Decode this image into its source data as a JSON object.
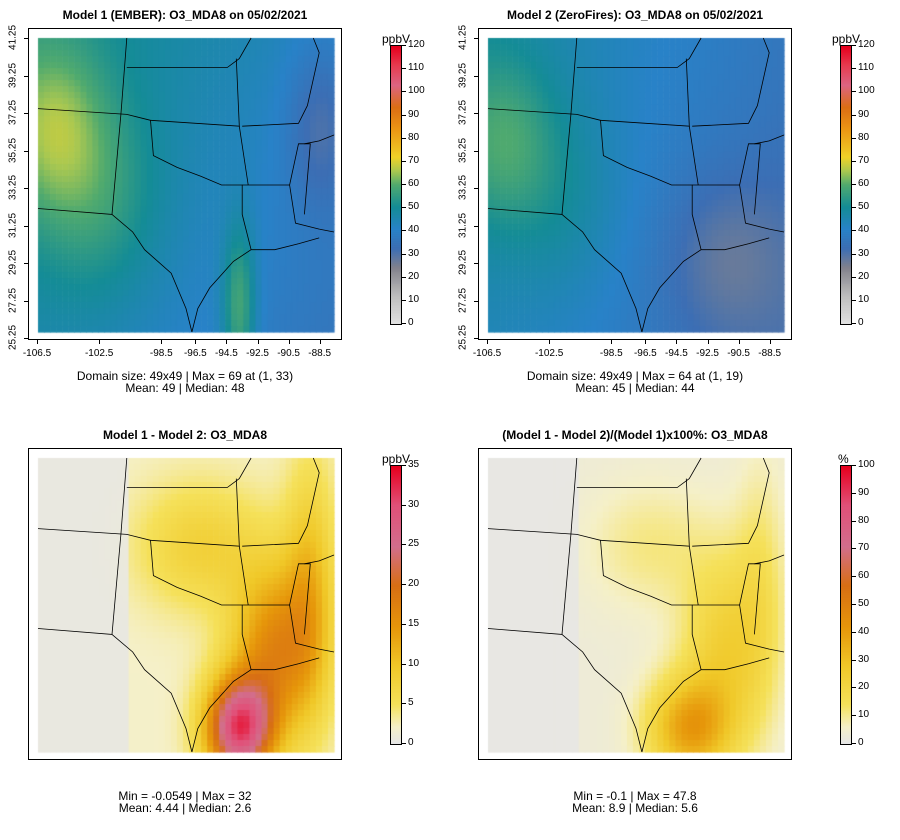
{
  "panels": [
    {
      "title": "Model 1 (EMBER): O3_MDA8 on 05/02/2021",
      "unit": "ppbV",
      "ticks": [
        "0",
        "10",
        "20",
        "30",
        "40",
        "50",
        "60",
        "70",
        "80",
        "90",
        "100",
        "110",
        "120"
      ],
      "scale": "conc",
      "range": [
        0,
        120
      ],
      "show_axes": true,
      "stats_line1": "Domain size: 49x49 | Max = 69 at (1, 33)",
      "stats_line2": "Mean: 49 |  Median: 48"
    },
    {
      "title": "Model 2 (ZeroFires): O3_MDA8 on 05/02/2021",
      "unit": "ppbV",
      "ticks": [
        "0",
        "10",
        "20",
        "30",
        "40",
        "50",
        "60",
        "70",
        "80",
        "90",
        "100",
        "110",
        "120"
      ],
      "scale": "conc",
      "range": [
        0,
        120
      ],
      "show_axes": true,
      "stats_line1": "Domain size: 49x49 | Max = 64 at (1, 19)",
      "stats_line2": "Mean: 45 |  Median: 44"
    },
    {
      "title": "Model 1 - Model 2: O3_MDA8",
      "unit": "ppbV",
      "ticks": [
        "0",
        "5",
        "10",
        "15",
        "20",
        "25",
        "30",
        "35"
      ],
      "scale": "diff",
      "range": [
        0,
        35
      ],
      "show_axes": false,
      "stats_line1": "Min = -0.0549 | Max = 32",
      "stats_line2": "Mean: 4.44 |  Median: 2.6"
    },
    {
      "title": "(Model 1 - Model 2)/(Model 1)x100%: O3_MDA8",
      "unit": "%",
      "ticks": [
        "0",
        "10",
        "20",
        "30",
        "40",
        "50",
        "60",
        "70",
        "80",
        "90",
        "100"
      ],
      "scale": "diff",
      "range": [
        0,
        100
      ],
      "show_axes": false,
      "stats_line1": "Min = -0.1 | Max = 47.8",
      "stats_line2": "Mean: 8.9 |  Median: 5.6"
    }
  ],
  "x_ticks": [
    "-106.5",
    "-102.5",
    "-98.5",
    "-96.5",
    "-94.5",
    "-92.5",
    "-90.5",
    "-88.5"
  ],
  "y_ticks": [
    "25.25",
    "27.25",
    "29.25",
    "31.25",
    "33.25",
    "35.25",
    "37.25",
    "39.25",
    "41.25"
  ]
}
